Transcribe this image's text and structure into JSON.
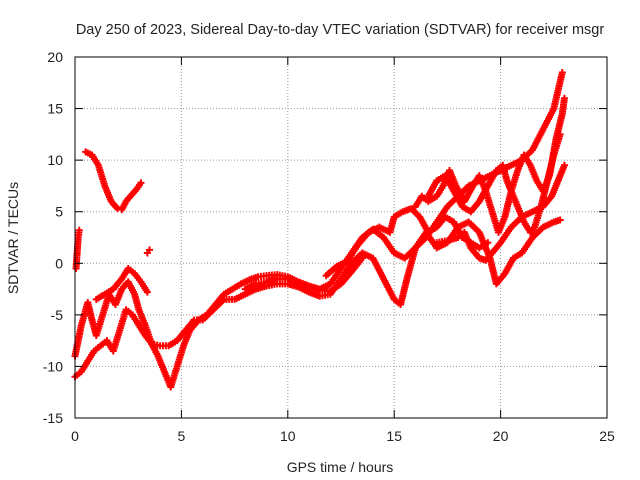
{
  "chart_data": {
    "type": "scatter",
    "title": "Day 250 of 2023, Sidereal Day-to-day VTEC variation (SDTVAR) for receiver msgr",
    "xlabel": "GPS time / hours",
    "ylabel": "SDTVAR / TECUs",
    "xlim": [
      0,
      25
    ],
    "ylim": [
      -15,
      20
    ],
    "xticks": [
      "0",
      "5",
      "10",
      "15",
      "20",
      "25"
    ],
    "yticks": [
      "-15",
      "-10",
      "-5",
      "0",
      "5",
      "10",
      "15",
      "20"
    ],
    "grid": true,
    "marker": "plus",
    "colors": {
      "series": "#ff0000",
      "grid": "#999999",
      "axis": "#000000"
    },
    "series": [
      {
        "values": [
          [
            0.0,
            -9.0
          ],
          [
            0.3,
            -6.0
          ],
          [
            0.6,
            -3.8
          ],
          [
            0.8,
            -5.5
          ],
          [
            1.0,
            -7.0
          ],
          [
            1.3,
            -5.0
          ],
          [
            1.6,
            -3.0
          ],
          [
            1.9,
            -4.0
          ],
          [
            2.2,
            -2.5
          ],
          [
            2.5,
            -1.8
          ],
          [
            2.8,
            -3.0
          ],
          [
            3.0,
            -4.5
          ],
          [
            3.3,
            -6.0
          ],
          [
            3.6,
            -7.8
          ],
          [
            3.9,
            -9.0
          ],
          [
            4.2,
            -10.5
          ],
          [
            4.5,
            -12.0
          ],
          [
            4.8,
            -10.0
          ],
          [
            5.1,
            -8.0
          ],
          [
            5.4,
            -6.5
          ],
          [
            5.8,
            -5.5
          ],
          [
            6.2,
            -5.0
          ],
          [
            6.6,
            -4.0
          ],
          [
            7.0,
            -3.0
          ],
          [
            7.4,
            -2.5
          ],
          [
            7.8,
            -2.0
          ],
          [
            8.2,
            -1.6
          ],
          [
            8.6,
            -1.3
          ],
          [
            9.0,
            -1.2
          ],
          [
            9.5,
            -1.1
          ],
          [
            10.0,
            -1.3
          ],
          [
            10.5,
            -1.8
          ],
          [
            11.0,
            -2.2
          ],
          [
            11.5,
            -2.5
          ],
          [
            12.0,
            -2.0
          ],
          [
            12.5,
            -0.5
          ],
          [
            13.0,
            1.0
          ],
          [
            13.5,
            2.5
          ],
          [
            14.0,
            3.3
          ],
          [
            14.5,
            2.5
          ],
          [
            15.0,
            1.0
          ],
          [
            15.5,
            0.5
          ],
          [
            16.0,
            1.5
          ],
          [
            16.5,
            2.5
          ],
          [
            17.0,
            4.0
          ],
          [
            17.5,
            5.5
          ],
          [
            18.0,
            6.5
          ],
          [
            18.5,
            7.5
          ],
          [
            19.0,
            8.0
          ],
          [
            19.5,
            8.5
          ],
          [
            20.0,
            9.0
          ],
          [
            20.5,
            9.5
          ],
          [
            21.0,
            10.0
          ],
          [
            21.5,
            11.0
          ],
          [
            22.0,
            13.0
          ],
          [
            22.5,
            15.0
          ],
          [
            22.9,
            18.5
          ]
        ]
      },
      {
        "values": [
          [
            0.0,
            -11.0
          ],
          [
            0.3,
            -10.5
          ],
          [
            0.6,
            -9.5
          ],
          [
            0.9,
            -8.5
          ],
          [
            1.2,
            -8.0
          ],
          [
            1.5,
            -7.5
          ],
          [
            1.8,
            -8.5
          ],
          [
            2.1,
            -6.5
          ],
          [
            2.4,
            -4.5
          ],
          [
            2.7,
            -5.0
          ],
          [
            3.0,
            -6.0
          ],
          [
            3.3,
            -7.0
          ],
          [
            3.6,
            -7.8
          ],
          [
            4.0,
            -8.0
          ],
          [
            4.4,
            -8.0
          ],
          [
            4.8,
            -7.5
          ],
          [
            5.2,
            -6.5
          ],
          [
            5.6,
            -5.5
          ],
          [
            6.0,
            -5.5
          ],
          [
            6.5,
            -4.5
          ],
          [
            7.0,
            -3.5
          ],
          [
            7.5,
            -3.5
          ],
          [
            8.0,
            -3.0
          ],
          [
            8.5,
            -2.5
          ],
          [
            9.0,
            -2.2
          ],
          [
            9.5,
            -2.0
          ],
          [
            10.0,
            -2.0
          ],
          [
            10.5,
            -2.3
          ],
          [
            11.0,
            -2.8
          ],
          [
            11.5,
            -3.2
          ],
          [
            12.0,
            -3.0
          ],
          [
            12.5,
            -1.5
          ],
          [
            13.0,
            0.0
          ],
          [
            13.5,
            1.0
          ],
          [
            14.0,
            0.5
          ],
          [
            14.5,
            -1.5
          ],
          [
            15.0,
            -3.5
          ],
          [
            15.3,
            -4.0
          ],
          [
            15.6,
            -1.5
          ],
          [
            16.0,
            1.5
          ],
          [
            16.5,
            3.0
          ],
          [
            17.0,
            1.5
          ],
          [
            17.5,
            2.0
          ],
          [
            18.0,
            3.5
          ],
          [
            18.5,
            4.0
          ],
          [
            19.0,
            3.0
          ],
          [
            19.5,
            0.5
          ],
          [
            19.8,
            -2.0
          ],
          [
            20.2,
            -1.0
          ],
          [
            20.6,
            0.5
          ],
          [
            21.0,
            1.0
          ],
          [
            21.5,
            2.5
          ],
          [
            22.0,
            3.5
          ],
          [
            22.5,
            4.0
          ],
          [
            22.8,
            4.2
          ]
        ]
      },
      {
        "values": [
          [
            0.5,
            10.8
          ],
          [
            0.8,
            10.5
          ],
          [
            1.1,
            9.5
          ],
          [
            1.4,
            7.5
          ],
          [
            1.7,
            6.0
          ],
          [
            2.0,
            5.3
          ],
          [
            2.2,
            5.2
          ],
          [
            2.4,
            6.0
          ],
          [
            2.6,
            6.5
          ],
          [
            2.9,
            7.2
          ],
          [
            3.1,
            7.8
          ]
        ]
      },
      {
        "values": [
          [
            0.05,
            -0.5
          ],
          [
            0.1,
            1.0
          ],
          [
            0.15,
            2.5
          ],
          [
            0.2,
            3.2
          ]
        ]
      },
      {
        "values": [
          [
            3.4,
            1.0
          ],
          [
            3.5,
            1.3
          ]
        ]
      },
      {
        "values": [
          [
            1.0,
            -3.5
          ],
          [
            1.4,
            -3.0
          ],
          [
            1.8,
            -2.5
          ],
          [
            2.2,
            -1.5
          ],
          [
            2.5,
            -0.5
          ],
          [
            2.8,
            -1.0
          ],
          [
            3.1,
            -1.8
          ],
          [
            3.4,
            -2.8
          ]
        ]
      },
      {
        "values": [
          [
            8.0,
            -2.5
          ],
          [
            8.5,
            -2.0
          ],
          [
            9.0,
            -1.8
          ],
          [
            9.5,
            -1.5
          ],
          [
            10.0,
            -1.5
          ],
          [
            10.5,
            -2.0
          ],
          [
            11.0,
            -2.3
          ],
          [
            11.5,
            -2.6
          ],
          [
            12.0,
            -2.7
          ],
          [
            12.5,
            -2.0
          ],
          [
            13.0,
            -0.8
          ],
          [
            13.5,
            0.5
          ]
        ]
      },
      {
        "values": [
          [
            11.8,
            -1.2
          ],
          [
            12.3,
            -0.3
          ],
          [
            12.8,
            0.2
          ],
          [
            13.3,
            1.8
          ],
          [
            13.8,
            3.0
          ],
          [
            14.3,
            3.5
          ],
          [
            14.8,
            3.0
          ],
          [
            15.0,
            4.5
          ],
          [
            15.4,
            5.0
          ],
          [
            15.8,
            5.3
          ],
          [
            16.2,
            4.5
          ],
          [
            16.6,
            3.0
          ],
          [
            17.0,
            3.5
          ],
          [
            17.4,
            4.5
          ],
          [
            17.8,
            4.0
          ],
          [
            18.2,
            2.5
          ],
          [
            18.6,
            2.0
          ],
          [
            19.0,
            1.5
          ],
          [
            19.4,
            2.0
          ]
        ]
      },
      {
        "values": [
          [
            16.6,
            6.5
          ],
          [
            17.0,
            8.0
          ],
          [
            17.4,
            8.5
          ],
          [
            17.8,
            7.0
          ],
          [
            18.2,
            5.5
          ],
          [
            18.6,
            5.0
          ],
          [
            19.0,
            6.0
          ],
          [
            19.4,
            7.5
          ],
          [
            19.8,
            9.0
          ],
          [
            20.1,
            9.5
          ],
          [
            20.3,
            8.0
          ],
          [
            20.5,
            7.0
          ],
          [
            20.8,
            5.5
          ],
          [
            21.1,
            4.0
          ],
          [
            21.4,
            3.0
          ],
          [
            21.6,
            3.5
          ],
          [
            21.9,
            5.5
          ],
          [
            22.2,
            8.0
          ],
          [
            22.5,
            10.5
          ],
          [
            22.8,
            12.5
          ]
        ]
      },
      {
        "values": [
          [
            16.0,
            5.5
          ],
          [
            16.3,
            6.5
          ],
          [
            16.6,
            6.0
          ],
          [
            17.0,
            6.5
          ],
          [
            17.3,
            7.5
          ],
          [
            17.6,
            9.0
          ],
          [
            17.9,
            7.5
          ],
          [
            18.3,
            6.0
          ],
          [
            18.7,
            7.5
          ],
          [
            19.0,
            8.5
          ],
          [
            19.3,
            7.0
          ],
          [
            19.6,
            5.0
          ],
          [
            19.9,
            3.0
          ],
          [
            20.2,
            4.5
          ],
          [
            20.5,
            7.0
          ],
          [
            20.8,
            9.0
          ],
          [
            21.1,
            10.5
          ],
          [
            21.4,
            9.5
          ],
          [
            21.7,
            8.0
          ],
          [
            22.0,
            7.0
          ],
          [
            22.3,
            8.5
          ],
          [
            22.6,
            12.0
          ],
          [
            22.9,
            14.5
          ],
          [
            23.0,
            16.0
          ]
        ]
      },
      {
        "values": [
          [
            17.0,
            2.0
          ],
          [
            17.5,
            2.2
          ],
          [
            18.0,
            2.5
          ],
          [
            18.3,
            3.0
          ],
          [
            18.6,
            1.5
          ],
          [
            19.0,
            0.5
          ],
          [
            19.3,
            0.3
          ],
          [
            19.6,
            1.0
          ],
          [
            20.0,
            2.0
          ],
          [
            20.5,
            3.5
          ],
          [
            21.0,
            4.5
          ],
          [
            21.5,
            5.0
          ],
          [
            22.0,
            5.5
          ],
          [
            22.4,
            6.5
          ],
          [
            22.8,
            8.5
          ],
          [
            23.0,
            9.5
          ]
        ]
      }
    ]
  }
}
